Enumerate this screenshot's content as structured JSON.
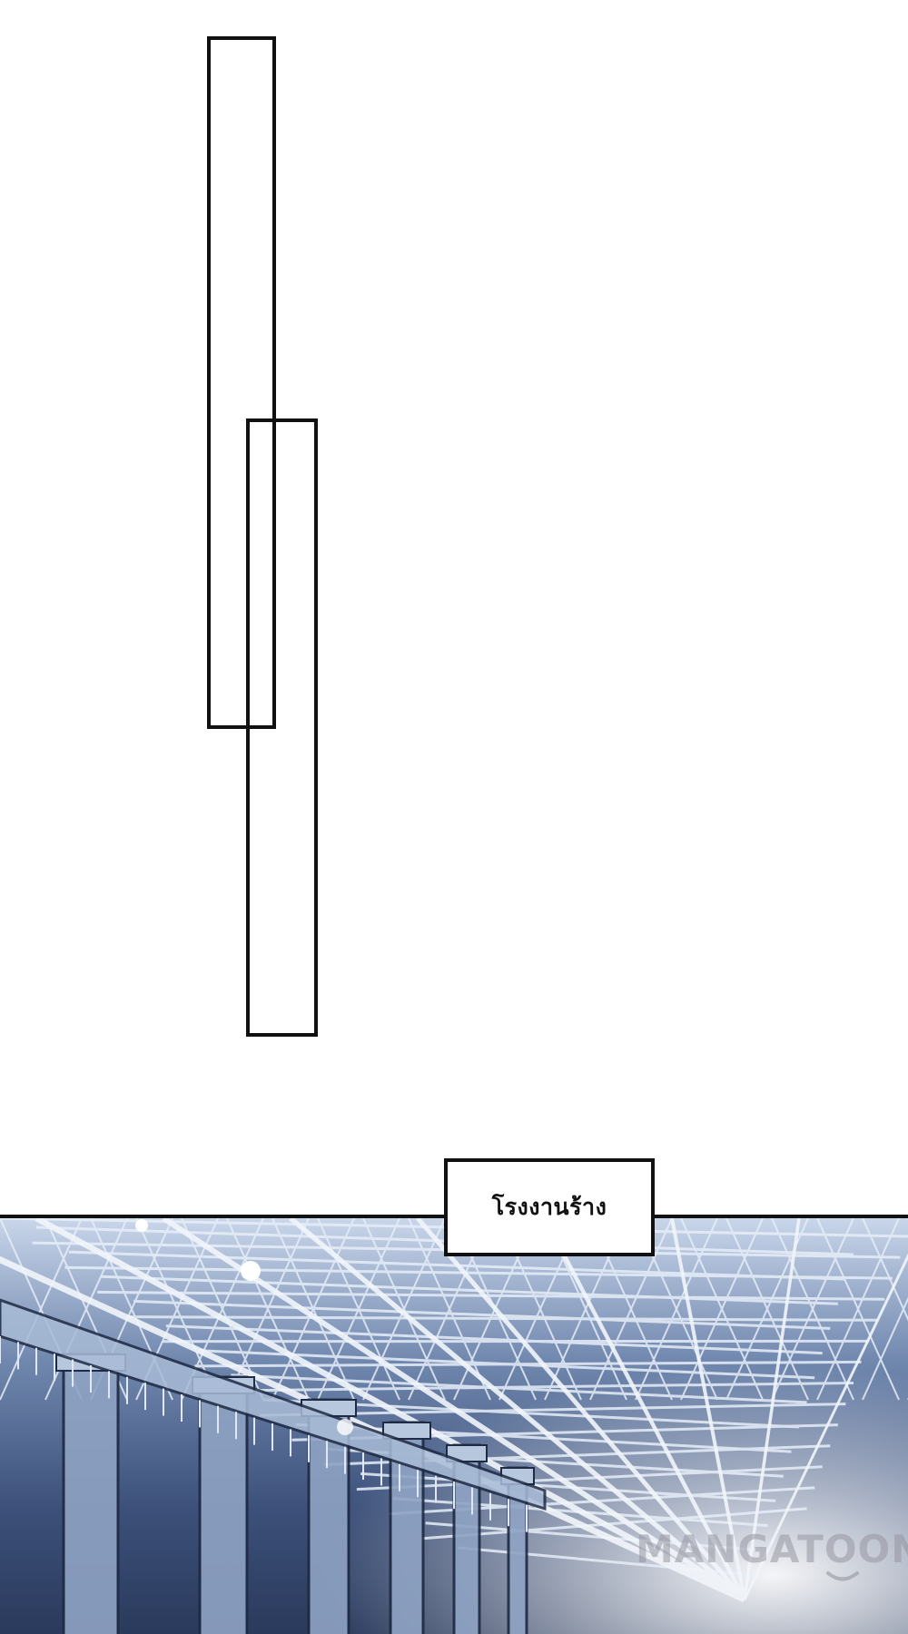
{
  "caption": {
    "text": "โรงงานร้าง"
  },
  "watermark": {
    "text": "MANGATOON",
    "icon": "smile-icon"
  },
  "empty_boxes": [
    {
      "name": "empty-speech-box-1",
      "content": ""
    },
    {
      "name": "empty-speech-box-2",
      "content": ""
    }
  ],
  "panel": {
    "subject": "factory-interior-illustration",
    "colors": {
      "sky_light": "#c9d6ea",
      "steel_mid": "#6f86ad",
      "steel_dark": "#2a3a5c",
      "truss": "#e6eef8",
      "border": "#111111"
    }
  }
}
